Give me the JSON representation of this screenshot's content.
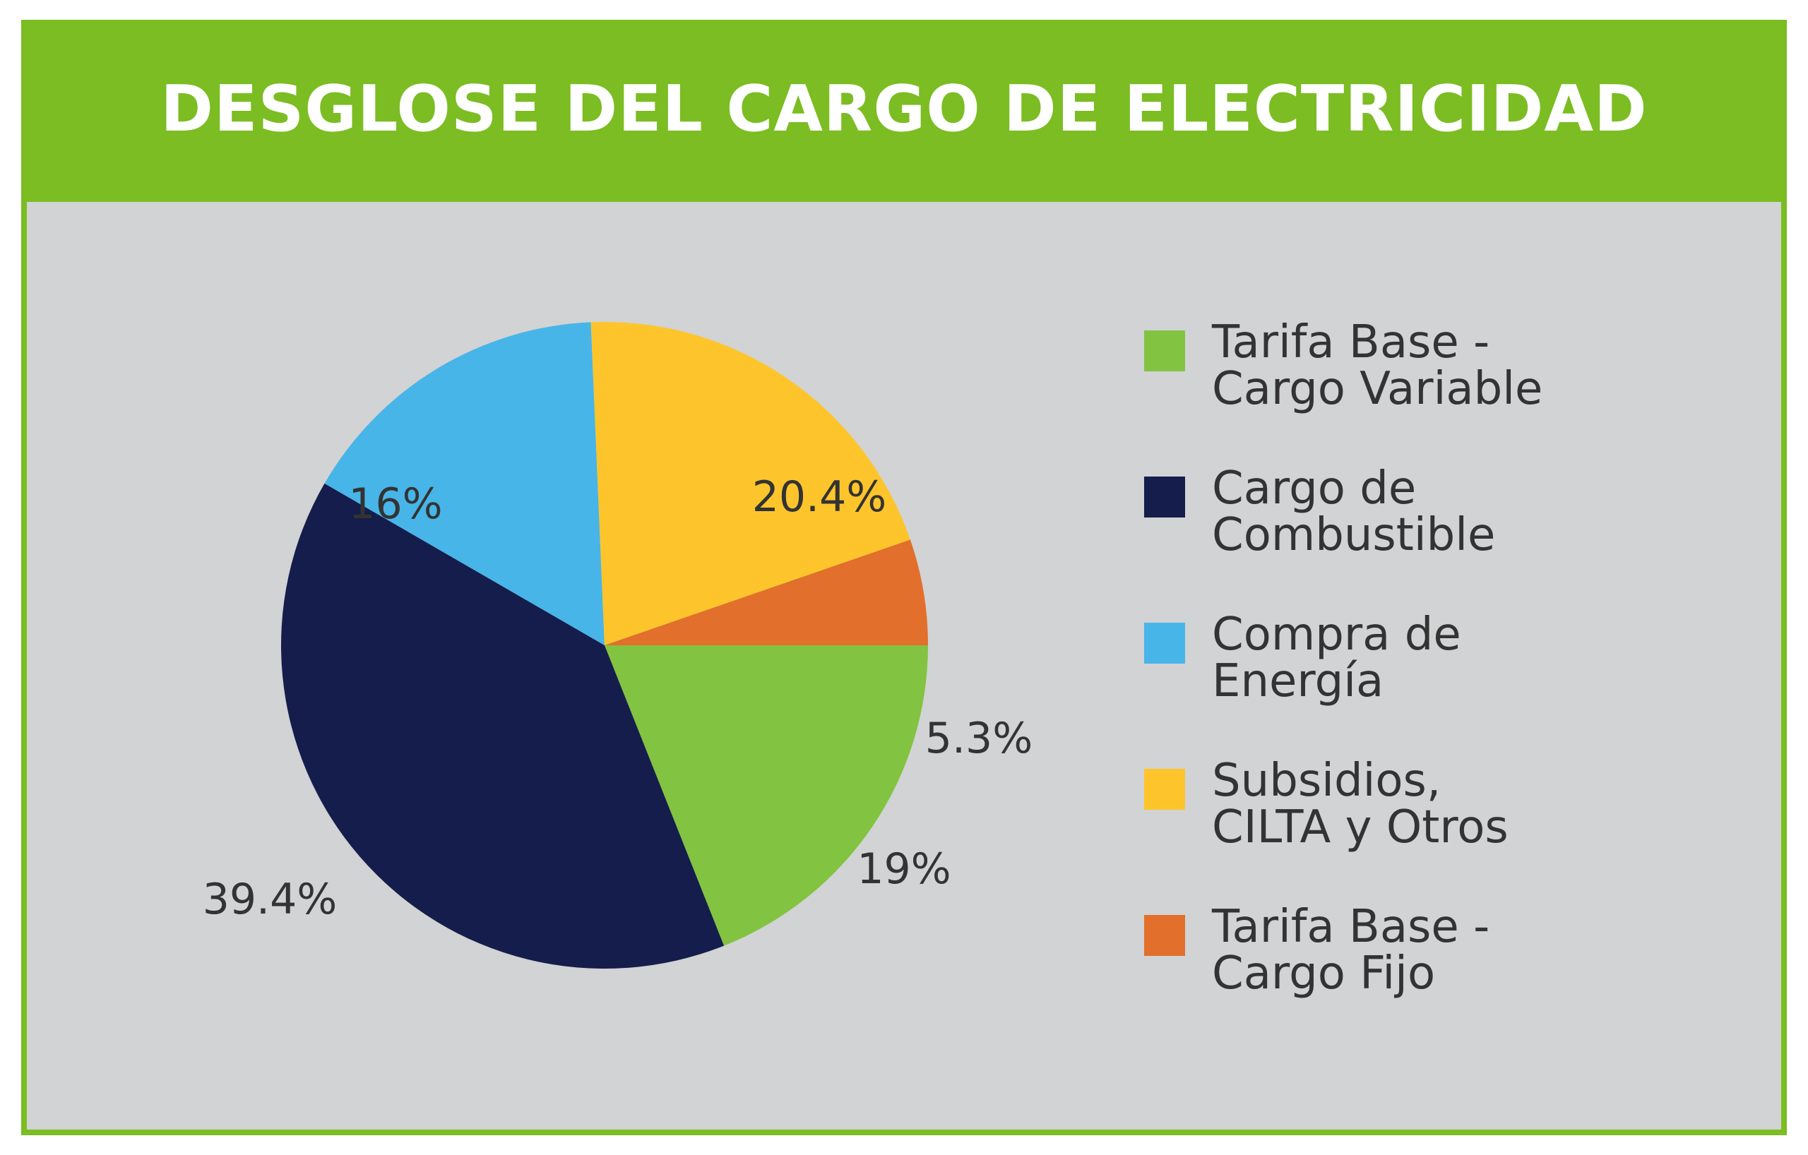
{
  "header": {
    "title": "DESGLOSE DEL CARGO DE ELECTRICIDAD"
  },
  "colors": {
    "header_bg": "#7bbd22",
    "body_bg": "#d1d3d4"
  },
  "chart_data": {
    "type": "pie",
    "title": "DESGLOSE DEL CARGO DE ELECTRICIDAD",
    "legend_placement": "right",
    "slices": [
      {
        "label": "Tarifa Base - Cargo Variable",
        "value": 19,
        "value_label": "19%",
        "color": "#82c341"
      },
      {
        "label": "Cargo de Combustible",
        "value": 39.4,
        "value_label": "39.4%",
        "color": "#141d4b"
      },
      {
        "label": "Compra de Energía",
        "value": 16,
        "value_label": "16%",
        "color": "#47b5e8"
      },
      {
        "label": "Subsidios, CILTA y Otros",
        "value": 20.4,
        "value_label": "20.4%",
        "color": "#fdc52b"
      },
      {
        "label": "Tarifa Base - Cargo Fijo",
        "value": 5.3,
        "value_label": "5.3%",
        "color": "#e26f2b"
      }
    ],
    "legend": [
      {
        "lines": [
          "Tarifa Base -",
          "Cargo Variable"
        ],
        "color": "#82c341"
      },
      {
        "lines": [
          "Cargo de",
          "Combustible"
        ],
        "color": "#141d4b"
      },
      {
        "lines": [
          "Compra de",
          "Energía"
        ],
        "color": "#47b5e8"
      },
      {
        "lines": [
          "Subsidios,",
          "CILTA y Otros"
        ],
        "color": "#fdc52b"
      },
      {
        "lines": [
          "Tarifa Base -",
          "Cargo Fijo"
        ],
        "color": "#e26f2b"
      }
    ]
  }
}
